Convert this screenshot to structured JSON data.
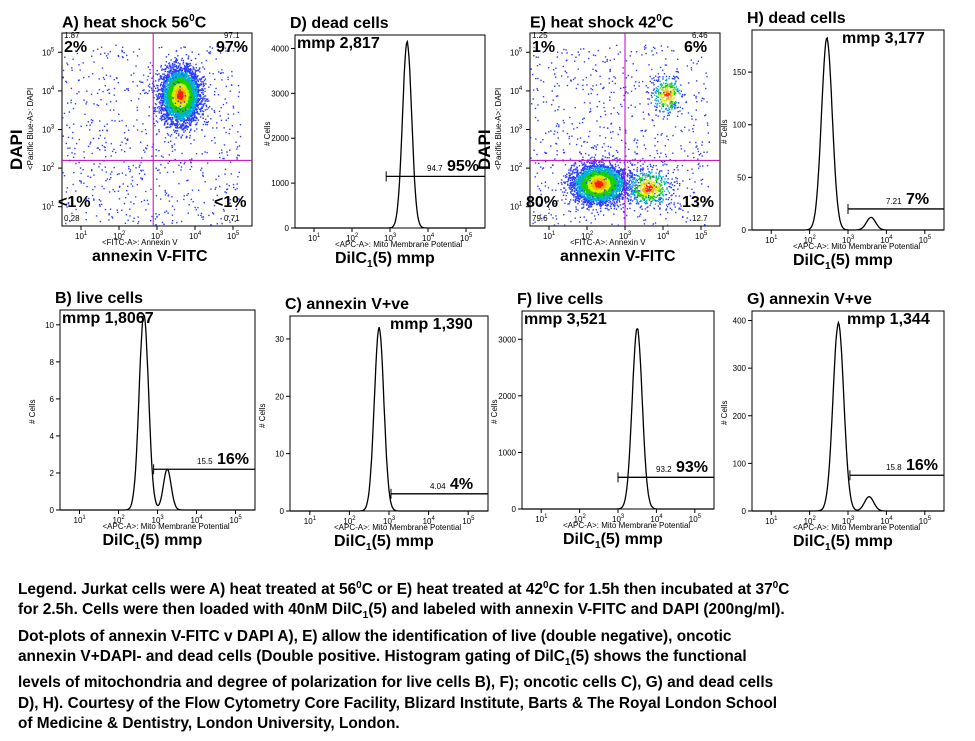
{
  "chart_data": [
    {
      "id": "A",
      "type": "scatter",
      "title": "A) heat shock 56",
      "title_sup": "0",
      "title_suffix": "C",
      "xlabel": "annexin V-FITC",
      "xlabel_small": "<FITC-A>: Annexin V",
      "ylabel": "DAPI",
      "ylabel_small": "<Pacific Blue-A>: DAPI",
      "x_log_range": [
        0.5,
        5.5
      ],
      "y_log_range": [
        0.5,
        5.5
      ],
      "x_ticks": [
        "10",
        "10",
        "10",
        "10",
        "10"
      ],
      "tick_exps": [
        "1",
        "2",
        "3",
        "4",
        "5"
      ],
      "gate": {
        "x_log": 2.9,
        "y_log": 2.2
      },
      "quadrants": {
        "UL": {
          "small": "1.87",
          "big": "2%"
        },
        "UR": {
          "small": "97.1",
          "big": "97%"
        },
        "LL": {
          "small": "0.28",
          "big": "<1%"
        },
        "LR": {
          "small": "0.71",
          "big": "<1%"
        }
      },
      "populations": [
        {
          "cx": 3.6,
          "cy": 3.9,
          "sx": 0.25,
          "sy": 0.35,
          "weight": 1.0
        }
      ]
    },
    {
      "id": "D",
      "type": "line",
      "title": "D) dead cells",
      "mmp": "mmp 2,817",
      "xlabel": "DilC",
      "xlabel_sub": "1",
      "xlabel_suffix": "(5) mmp",
      "xlabel_small": "<APC-A>: Mito Membrane Potential",
      "ylabel_small": "# Cells",
      "x_log_range": [
        0.5,
        5.5
      ],
      "ylim": [
        0,
        4300
      ],
      "y_ticks": [
        0,
        1000,
        2000,
        3000,
        4000
      ],
      "peak": {
        "x_log": 3.45,
        "y": 4150,
        "width": 0.12
      },
      "gate": {
        "x_log_start": 2.9,
        "y": 1150,
        "small": "94.7",
        "big": "95%"
      }
    },
    {
      "id": "E",
      "type": "scatter",
      "title": "E) heat shock 42",
      "title_sup": "0",
      "title_suffix": "C",
      "xlabel": "annexin V-FITC",
      "xlabel_small": "<FITC-A>: Annexin V",
      "ylabel": "DAPI",
      "ylabel_small": "<Pacific Blue-A>: DAPI",
      "x_log_range": [
        0.5,
        5.5
      ],
      "y_log_range": [
        0.5,
        5.5
      ],
      "gate": {
        "x_log": 3.0,
        "y_log": 2.2
      },
      "quadrants": {
        "UL": {
          "small": "1.25",
          "big": "1%"
        },
        "UR": {
          "small": "6.46",
          "big": "6%"
        },
        "LL": {
          "small": "79.6",
          "big": "80%"
        },
        "LR": {
          "small": "12.7",
          "big": "13%"
        }
      },
      "populations": [
        {
          "cx": 2.3,
          "cy": 1.6,
          "sx": 0.35,
          "sy": 0.25,
          "weight": 0.8
        },
        {
          "cx": 3.6,
          "cy": 1.5,
          "sx": 0.3,
          "sy": 0.25,
          "weight": 0.13
        },
        {
          "cx": 4.1,
          "cy": 3.9,
          "sx": 0.2,
          "sy": 0.25,
          "weight": 0.07
        }
      ]
    },
    {
      "id": "H",
      "type": "line",
      "title": "H) dead cells",
      "mmp": "mmp 3,177",
      "xlabel": "DilC",
      "xlabel_sub": "1",
      "xlabel_suffix": "(5) mmp",
      "xlabel_small": "<APC-A>: Mito Membrane Potential",
      "ylabel_small": "# Cells",
      "x_log_range": [
        0.5,
        5.5
      ],
      "ylim": [
        0,
        190
      ],
      "y_ticks": [
        0,
        50,
        100,
        150
      ],
      "peak": {
        "x_log": 2.45,
        "y": 182,
        "width": 0.14
      },
      "shoulder": {
        "x_log": 3.6,
        "y": 12,
        "width": 0.12
      },
      "gate": {
        "x_log_start": 3.0,
        "y": 20,
        "small": "7.21",
        "big": "7%"
      }
    },
    {
      "id": "B",
      "type": "line",
      "title": "B) live cells",
      "mmp": "mmp 1,8067",
      "xlabel": "DilC",
      "xlabel_sub": "1",
      "xlabel_suffix": "(5) mmp",
      "xlabel_small": "<APC-A>: Mito Membrane Potential",
      "ylabel_small": "# Cells",
      "x_log_range": [
        0.5,
        5.5
      ],
      "ylim": [
        0,
        10.8
      ],
      "y_ticks": [
        0,
        2,
        4,
        6,
        8,
        10
      ],
      "peak": {
        "x_log": 2.65,
        "y": 10.6,
        "width": 0.12
      },
      "shoulder": {
        "x_log": 3.25,
        "y": 2.2,
        "width": 0.1
      },
      "gate": {
        "x_log_start": 2.9,
        "y": 2.2,
        "small": "15.5",
        "big": "16%"
      }
    },
    {
      "id": "C",
      "type": "line",
      "title": "C) annexin V+ve",
      "mmp": "mmp 1,390",
      "xlabel": "DilC",
      "xlabel_sub": "1",
      "xlabel_suffix": "(5) mmp",
      "xlabel_small": "<APC-A>: Mito Membrane Potential",
      "ylabel_small": "# Cells",
      "x_log_range": [
        0.5,
        5.5
      ],
      "ylim": [
        0,
        34
      ],
      "y_ticks": [
        0,
        10,
        20,
        30
      ],
      "peak": {
        "x_log": 2.75,
        "y": 32,
        "width": 0.12
      },
      "gate": {
        "x_log_start": 3.05,
        "y": 3,
        "small": "4.04",
        "big": "4%"
      }
    },
    {
      "id": "F",
      "type": "line",
      "title": "F) live cells",
      "mmp": "mmp 3,521",
      "xlabel": "DilC",
      "xlabel_sub": "1",
      "xlabel_suffix": "(5) mmp",
      "xlabel_small": "<APC-A>: Mito Membrane Potential",
      "ylabel_small": "# Cells",
      "x_log_range": [
        0.5,
        5.5
      ],
      "ylim": [
        0,
        3500
      ],
      "y_ticks": [
        0,
        1000,
        2000,
        3000
      ],
      "peak": {
        "x_log": 3.5,
        "y": 3200,
        "width": 0.13
      },
      "gate": {
        "x_log_start": 3.0,
        "y": 560,
        "small": "93.2",
        "big": "93%"
      }
    },
    {
      "id": "G",
      "type": "line",
      "title": "G) annexin V+ve",
      "mmp": "mmp 1,344",
      "xlabel": "DilC",
      "xlabel_sub": "1",
      "xlabel_suffix": "(5) mmp",
      "xlabel_small": "<APC-A>: Mito Membrane Potential",
      "ylabel_small": "# Cells",
      "x_log_range": [
        0.5,
        5.5
      ],
      "ylim": [
        0,
        420
      ],
      "y_ticks": [
        0,
        100,
        200,
        300,
        400
      ],
      "peak": {
        "x_log": 2.75,
        "y": 395,
        "width": 0.14
      },
      "shoulder": {
        "x_log": 3.55,
        "y": 30,
        "width": 0.12
      },
      "gate": {
        "x_log_start": 3.05,
        "y": 75,
        "small": "15.8",
        "big": "16%"
      }
    }
  ],
  "legend": {
    "l1": "Legend. Jurkat cells were A) heat treated at 56",
    "l1_sup1": "0",
    "l1b": "C or E) heat treated at 42",
    "l1_sup2": "0",
    "l1c": "C for 1.5h then incubated at 37",
    "l1_sup3": "0",
    "l1d": "C",
    "l2": "for 2.5h. Cells were then loaded with 40nM DilC",
    "l2_sub": "1",
    "l2b": "(5) and labeled with annexin V-FITC and DAPI (200ng/ml).",
    "l3": "Dot-plots of annexin V-FITC v DAPI A), E) allow the identification of live (double negative), oncotic",
    "l4": "annexin V+DAPI- and dead cells (Double positive. Histogram gating of DilC",
    "l4_sub": "1",
    "l4b": "(5) shows the functional",
    "l5": "levels of mitochondria and degree of polarization for live cells B), F); oncotic cells C), G) and dead cells",
    "l6": "D), H). Courtesy of the Flow Cytometry Core Facility, Blizard Institute, Barts & The Royal London School",
    "l7": "of Medicine & Dentistry, London University, London."
  }
}
